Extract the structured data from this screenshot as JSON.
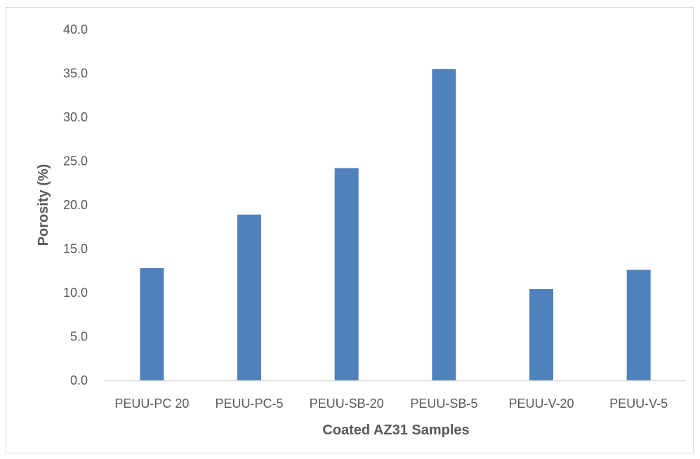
{
  "chart_data": {
    "type": "bar",
    "title": "",
    "xlabel": "Coated AZ31 Samples",
    "ylabel": "Porosity (%)",
    "categories": [
      "PEUU-PC 20",
      "PEUU-PC-5",
      "PEUU-SB-20",
      "PEUU-SB-5",
      "PEUU-V-20",
      "PEUU-V-5"
    ],
    "values": [
      12.8,
      18.9,
      24.2,
      35.5,
      10.4,
      12.6
    ],
    "ylim": [
      0,
      40
    ],
    "yticks": [
      "0.0",
      "5.0",
      "10.0",
      "15.0",
      "20.0",
      "25.0",
      "30.0",
      "35.0",
      "40.0"
    ],
    "grid": false,
    "legend": "none",
    "bar_color": "#4f81bd",
    "axis_color": "#d9d9d9"
  }
}
